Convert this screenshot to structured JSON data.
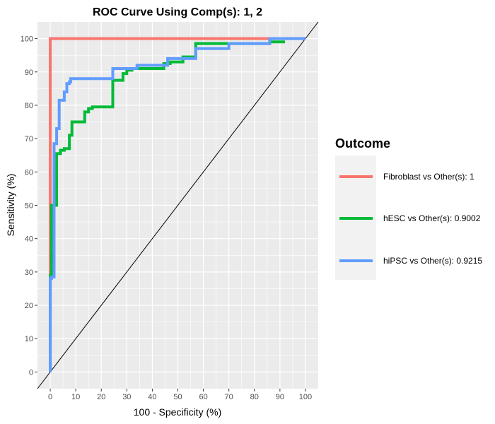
{
  "chart_data": {
    "type": "line",
    "title": "ROC Curve Using Comp(s): 1, 2",
    "xlabel": "100 - Specificity (%)",
    "ylabel": "Sensitivity (%)",
    "xlim": [
      -5,
      105
    ],
    "ylim": [
      -5,
      105
    ],
    "xticks": [
      0,
      10,
      20,
      30,
      40,
      50,
      60,
      70,
      80,
      90,
      100
    ],
    "yticks": [
      0,
      10,
      20,
      30,
      40,
      50,
      60,
      70,
      80,
      90,
      100
    ],
    "grid": true,
    "legend_position": "right",
    "legend_title": "Outcome",
    "background": "#EBEBEB",
    "reference_line": {
      "x": [
        -5,
        105
      ],
      "y": [
        -5,
        105
      ],
      "color": "#000000"
    },
    "series": [
      {
        "name": "Fibroblast vs Other(s): 1",
        "color": "#F8766D",
        "x": [
          0,
          0,
          86
        ],
        "y": [
          0,
          100,
          100
        ]
      },
      {
        "name": "hESC vs Other(s): 0.9002",
        "color": "#00BA38",
        "x": [
          0,
          0,
          0.5,
          0.5,
          2.5,
          2.5,
          4,
          4,
          5.5,
          5.5,
          7.5,
          7.5,
          8.5,
          8.5,
          13.5,
          13.5,
          15,
          15,
          16.5,
          16.5,
          24.5,
          24.5,
          28.5,
          28.5,
          30,
          30,
          32,
          32,
          44.5,
          44.5,
          47,
          47,
          52,
          52,
          57,
          57,
          70,
          70,
          86,
          86,
          92
        ],
        "y": [
          0,
          29,
          29,
          50,
          50,
          65.5,
          65.5,
          66.5,
          66.5,
          67,
          67,
          71,
          71,
          75,
          75,
          78,
          78,
          79,
          79,
          79.5,
          79.5,
          87.5,
          87.5,
          89.5,
          89.5,
          90.5,
          90.5,
          91,
          91,
          92.5,
          92.5,
          93,
          93,
          94.5,
          94.5,
          98.5,
          98.5,
          98.5,
          98.5,
          99,
          99
        ]
      },
      {
        "name": "hiPSC vs Other(s): 0.9215",
        "color": "#619CFF",
        "x": [
          0,
          0,
          0.5,
          0.5,
          1.5,
          1.5,
          2.5,
          2.5,
          3.5,
          3.5,
          5.5,
          5.5,
          6.5,
          6.5,
          7.5,
          7.5,
          8,
          8,
          24.5,
          24.5,
          34,
          34,
          46,
          46,
          57,
          57,
          70,
          70,
          86,
          86,
          100
        ],
        "y": [
          0,
          28,
          28,
          28.5,
          28.5,
          68.5,
          68.5,
          73,
          73,
          81.5,
          81.5,
          84,
          84,
          86.5,
          86.5,
          87,
          87,
          88,
          88,
          91,
          91,
          92,
          92,
          94,
          94,
          97,
          97,
          98.5,
          98.5,
          100,
          100
        ]
      }
    ]
  }
}
